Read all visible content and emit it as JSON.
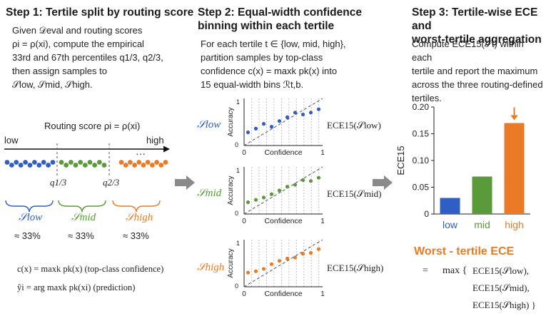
{
  "step1": {
    "title": "Step 1: Tertile split by routing score",
    "body": [
      "Given 𝒟eval and routing scores",
      "ρi = ρ(xi), compute the empirical",
      "33rd and 67th percentiles q1/3, q2/3,",
      "then assign samples to",
      "𝒮low, 𝒮mid, 𝒮high."
    ],
    "axis_title": "Routing score ρi = ρ(xi)",
    "axis_low": "low",
    "axis_high": "high",
    "ellipsis": "…",
    "q1": "q1/3",
    "q2": "q2/3",
    "groups": [
      {
        "label": "𝒮low",
        "pct": "≈ 33%"
      },
      {
        "label": "𝒮mid",
        "pct": "≈ 33%"
      },
      {
        "label": "𝒮high",
        "pct": "≈ 33%"
      }
    ],
    "def_conf": "c(x) = maxk pk(x)  (top-class confidence)",
    "def_pred": "ŷi = arg maxk pk(xi)  (prediction)"
  },
  "step2": {
    "title_line1": "Step 2: Equal-width confidence",
    "title_line2": "binning within each tertile",
    "body": [
      "For each tertile t ∈ {low, mid, high},",
      "partition samples by top-class",
      "confidence c(x) = maxk pk(x) into",
      "15 equal-width bins ℛt,b."
    ],
    "panels": [
      {
        "set": "𝒮low",
        "ece": "ECE15(𝒮low)",
        "ylabel": "Accuracy",
        "xlabel": "Confidence",
        "tick0": "0",
        "tick1": "1",
        "ytick0": "0",
        "ytick1": "1"
      },
      {
        "set": "𝒮mid",
        "ece": "ECE15(𝒮mid)",
        "ylabel": "Accuracy",
        "xlabel": "Confidence",
        "tick0": "0",
        "tick1": "1",
        "ytick0": "0",
        "ytick1": "1"
      },
      {
        "set": "𝒮high",
        "ece": "ECE15(𝒮high)",
        "ylabel": "Accuracy",
        "xlabel": "Confidence",
        "tick0": "0",
        "tick1": "1",
        "ytick0": "0",
        "ytick1": "1"
      }
    ]
  },
  "step3": {
    "title_line1": "Step 3: Tertile-wise ECE and",
    "title_line2": "worst-tertile aggregation",
    "body": [
      "Compute ECE15(𝒮t) within each",
      "tertile and report the maximum",
      "across the three routing-defined",
      "tertiles."
    ],
    "worst_title": "Worst - tertile ECE",
    "formula_eq": "=",
    "formula_max": "max {",
    "formula_terms": [
      "ECE15(𝒮low),",
      "ECE15(𝒮mid),",
      "ECE15(𝒮high)  }"
    ]
  },
  "colors": {
    "low": "#2f5fc4",
    "mid": "#5a9a3a",
    "high": "#ea7a25",
    "arrow": "#8a8a8a"
  },
  "chart_data": {
    "type": "bar",
    "categories": [
      "low",
      "mid",
      "high"
    ],
    "values": [
      0.03,
      0.07,
      0.17
    ],
    "ylabel": "ECE15",
    "ylim": [
      0,
      0.2
    ],
    "yticks": [
      "0",
      "0.05",
      "0.10",
      "0.15",
      "0.20"
    ],
    "colors": [
      "#2f5fc4",
      "#5a9a3a",
      "#ea7a25"
    ]
  },
  "reliability_points": {
    "low": [
      [
        0.05,
        0.28
      ],
      [
        0.15,
        0.36
      ],
      [
        0.25,
        0.46
      ],
      [
        0.35,
        0.4
      ],
      [
        0.45,
        0.52
      ],
      [
        0.55,
        0.6
      ],
      [
        0.65,
        0.7
      ],
      [
        0.75,
        0.66
      ],
      [
        0.85,
        0.7
      ],
      [
        0.95,
        0.77
      ]
    ],
    "mid": [
      [
        0.05,
        0.25
      ],
      [
        0.15,
        0.3
      ],
      [
        0.25,
        0.35
      ],
      [
        0.35,
        0.42
      ],
      [
        0.45,
        0.5
      ],
      [
        0.55,
        0.58
      ],
      [
        0.65,
        0.62
      ],
      [
        0.75,
        0.72
      ],
      [
        0.85,
        0.7
      ],
      [
        0.95,
        0.77
      ]
    ],
    "high": [
      [
        0.05,
        0.3
      ],
      [
        0.15,
        0.33
      ],
      [
        0.25,
        0.38
      ],
      [
        0.35,
        0.48
      ],
      [
        0.45,
        0.55
      ],
      [
        0.55,
        0.6
      ],
      [
        0.65,
        0.62
      ],
      [
        0.75,
        0.7
      ],
      [
        0.85,
        0.72
      ],
      [
        0.95,
        0.8
      ]
    ]
  },
  "routing_dots": {
    "low": 11,
    "mid": 10,
    "high": 11
  }
}
